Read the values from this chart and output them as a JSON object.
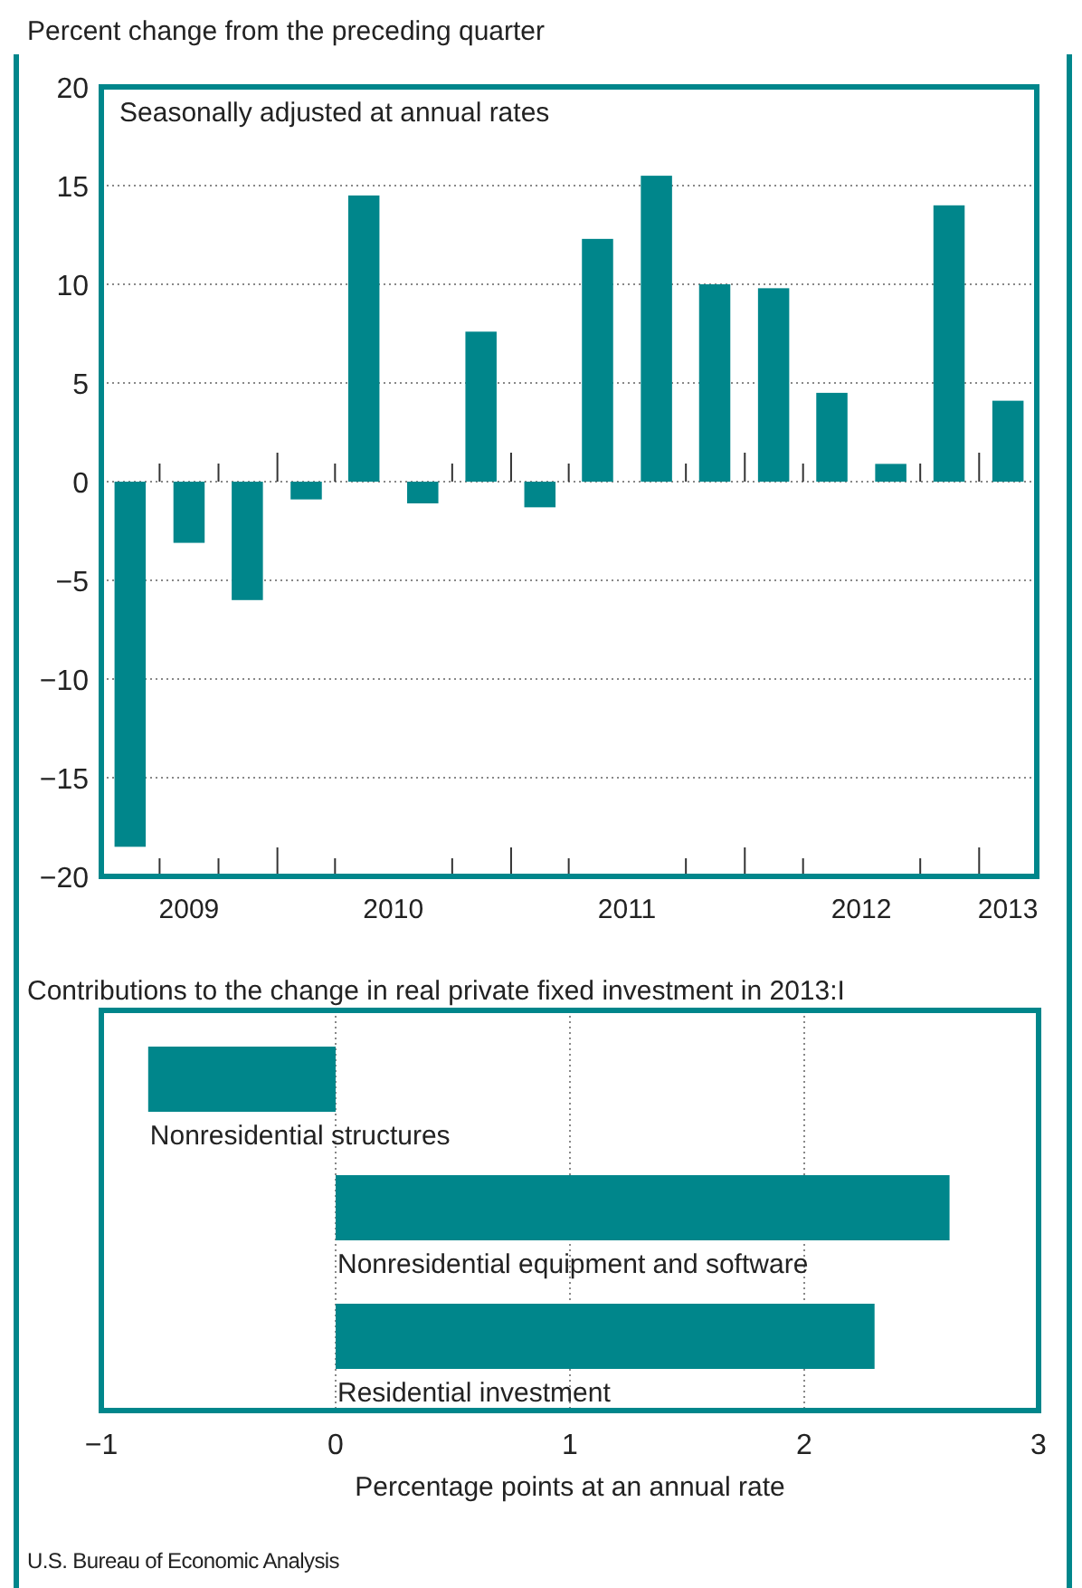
{
  "chart_data": [
    {
      "type": "bar",
      "title": "Percent change from the preceding quarter",
      "subtitle": "Seasonally adjusted at annual rates",
      "x": [
        "2009-05-16",
        "2009-08-16",
        "2009-11-15",
        "2010-02-15",
        "2010-05-16",
        "2010-08-16",
        "2010-11-15",
        "2011-02-15",
        "2011-05-16",
        "2011-08-16",
        "2011-11-15",
        "2012-02-15",
        "2012-05-16",
        "2012-08-16",
        "2012-11-15",
        "2013-02-15"
      ],
      "values": [
        -18.5,
        -3.1,
        -6.0,
        -0.9,
        14.5,
        -1.1,
        7.6,
        -1.3,
        12.3,
        15.5,
        10.0,
        9.8,
        4.5,
        0.9,
        14.0,
        4.1
      ],
      "color": "#00868b",
      "xlim": [
        "2009-04-01",
        "2013-04-01"
      ],
      "ylim": [
        -20,
        20
      ],
      "xticks": [
        {
          "value": "2009-07-01",
          "label": null
        },
        {
          "value": "2009-08-16",
          "label": "2009"
        },
        {
          "value": "2009-10-01",
          "label": null
        },
        {
          "value": "2010-01-01",
          "label": null
        },
        {
          "value": "2010-04-01",
          "label": null
        },
        {
          "value": "2010-07-01",
          "label": "2010"
        },
        {
          "value": "2010-10-01",
          "label": null
        },
        {
          "value": "2011-01-01",
          "label": null
        },
        {
          "value": "2011-04-01",
          "label": null
        },
        {
          "value": "2011-07-01",
          "label": "2011"
        },
        {
          "value": "2011-10-01",
          "label": null
        },
        {
          "value": "2012-01-01",
          "label": null
        },
        {
          "value": "2012-04-01",
          "label": null
        },
        {
          "value": "2012-07-01",
          "label": "2012"
        },
        {
          "value": "2012-10-01",
          "label": null
        },
        {
          "value": "2013-01-01",
          "label": null
        },
        {
          "value": "2013-02-15",
          "label": "2013"
        }
      ],
      "yticks": [
        {
          "value": -20,
          "label": "−20"
        },
        {
          "value": -15,
          "label": "−15"
        },
        {
          "value": -10,
          "label": "−10"
        },
        {
          "value": -5,
          "label": "−5"
        },
        0,
        5,
        10,
        15,
        20
      ],
      "grid": "y"
    },
    {
      "type": "bar",
      "orientation": "horizontal",
      "title": "Contributions to the change in real private fixed investment in 2013:I",
      "xlabel": "Percentage points at an annual rate",
      "categories": [
        "Nonresidential structures",
        "Nonresidential equipment and software",
        "Residential investment"
      ],
      "values": [
        -0.8,
        2.62,
        2.3
      ],
      "color": "#00868b",
      "xlim": [
        -1,
        3
      ],
      "xticks": [
        {
          "value": -1,
          "label": "−1"
        },
        0,
        1,
        2,
        3
      ],
      "grid": "x",
      "annotations": [
        "U.S. Bureau of Economic Analysis"
      ]
    }
  ]
}
